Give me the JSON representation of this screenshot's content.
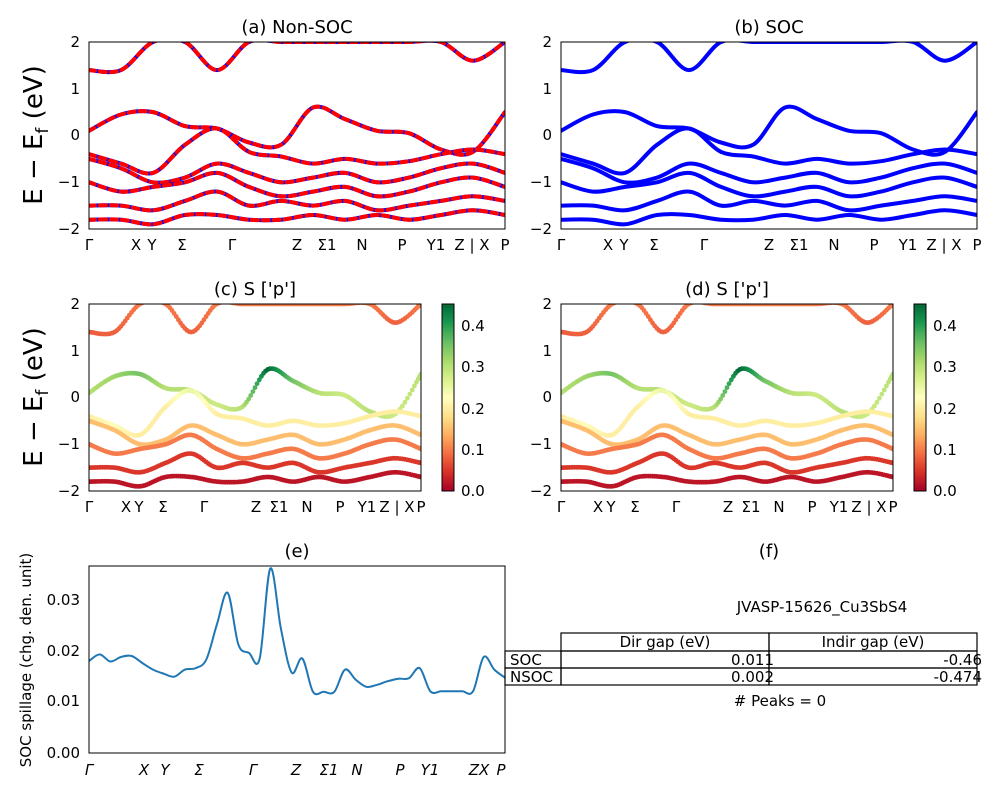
{
  "figure": {
    "band_ylabel": "E − E_f (eV)",
    "ylabel_main": "E − E",
    "ylabel_sub": "f",
    "ylabel_unit": " (eV)"
  },
  "chart_data": [
    {
      "id": "a",
      "type": "line",
      "title": "(a) Non-SOC",
      "ylim": [
        -2,
        2
      ],
      "yticks": [
        "2",
        "1",
        "0",
        "−1",
        "−2"
      ],
      "xticks": [
        "Γ",
        "X",
        "Y",
        "Σ",
        "Γ",
        "Z",
        "Σ1",
        "N",
        "P",
        "Y1",
        "Z | X",
        "P"
      ],
      "series": [
        {
          "color": "#0000ff",
          "line": "solid",
          "values": [
            0.1,
            0.45,
            0.5,
            0.2,
            0.15,
            -0.15,
            -0.2,
            0.6,
            0.35,
            0.1,
            0.05,
            -0.3,
            -0.35,
            0.5
          ]
        },
        {
          "color": "#ff0000",
          "line": "dashed",
          "values": [
            0.1,
            0.45,
            0.5,
            0.2,
            0.15,
            -0.15,
            -0.2,
            0.6,
            0.35,
            0.1,
            0.05,
            -0.3,
            -0.35,
            0.5
          ]
        },
        {
          "color": "#0000ff",
          "line": "solid",
          "values": [
            1.4,
            1.4,
            2.0,
            2.0,
            1.4,
            2.0,
            2.0,
            2.0,
            2.0,
            2.0,
            2.0,
            2.0,
            1.6,
            2.0
          ]
        },
        {
          "color": "#ff0000",
          "line": "dashed",
          "values": [
            1.4,
            1.4,
            2.0,
            2.0,
            1.4,
            2.0,
            2.0,
            2.0,
            2.0,
            2.0,
            2.0,
            2.0,
            1.6,
            2.0
          ]
        },
        {
          "color": "#0000ff",
          "line": "solid",
          "values": [
            -0.4,
            -0.6,
            -0.8,
            -0.2,
            0.15,
            -0.35,
            -0.45,
            -0.6,
            -0.5,
            -0.6,
            -0.55,
            -0.4,
            -0.3,
            -0.4
          ]
        },
        {
          "color": "#ff0000",
          "line": "dashed",
          "values": [
            -0.4,
            -0.6,
            -0.8,
            -0.2,
            0.15,
            -0.35,
            -0.45,
            -0.6,
            -0.5,
            -0.6,
            -0.55,
            -0.4,
            -0.3,
            -0.4
          ]
        },
        {
          "color": "#0000ff",
          "line": "solid",
          "values": [
            -0.5,
            -0.7,
            -1.0,
            -0.9,
            -0.6,
            -0.8,
            -1.0,
            -0.9,
            -0.8,
            -1.0,
            -0.9,
            -0.7,
            -0.6,
            -0.8
          ]
        },
        {
          "color": "#ff0000",
          "line": "dashed",
          "values": [
            -0.5,
            -0.7,
            -1.0,
            -0.9,
            -0.6,
            -0.8,
            -1.0,
            -0.9,
            -0.8,
            -1.0,
            -0.9,
            -0.7,
            -0.6,
            -0.8
          ]
        },
        {
          "color": "#0000ff",
          "line": "solid",
          "values": [
            -1.0,
            -1.2,
            -1.1,
            -1.0,
            -0.8,
            -1.1,
            -1.3,
            -1.2,
            -1.1,
            -1.3,
            -1.2,
            -1.0,
            -0.9,
            -1.1
          ]
        },
        {
          "color": "#ff0000",
          "line": "dashed",
          "values": [
            -1.0,
            -1.2,
            -1.1,
            -1.0,
            -0.8,
            -1.1,
            -1.3,
            -1.2,
            -1.1,
            -1.3,
            -1.2,
            -1.0,
            -0.9,
            -1.1
          ]
        },
        {
          "color": "#0000ff",
          "line": "solid",
          "values": [
            -1.5,
            -1.5,
            -1.6,
            -1.4,
            -1.2,
            -1.5,
            -1.4,
            -1.5,
            -1.4,
            -1.6,
            -1.5,
            -1.4,
            -1.3,
            -1.4
          ]
        },
        {
          "color": "#ff0000",
          "line": "dashed",
          "values": [
            -1.5,
            -1.5,
            -1.6,
            -1.4,
            -1.2,
            -1.5,
            -1.4,
            -1.5,
            -1.4,
            -1.6,
            -1.5,
            -1.4,
            -1.3,
            -1.4
          ]
        },
        {
          "color": "#0000ff",
          "line": "solid",
          "values": [
            -1.8,
            -1.8,
            -1.9,
            -1.7,
            -1.7,
            -1.8,
            -1.8,
            -1.7,
            -1.8,
            -1.7,
            -1.8,
            -1.7,
            -1.6,
            -1.7
          ]
        },
        {
          "color": "#ff0000",
          "line": "dashed",
          "values": [
            -1.8,
            -1.8,
            -1.9,
            -1.7,
            -1.7,
            -1.8,
            -1.8,
            -1.7,
            -1.8,
            -1.7,
            -1.8,
            -1.7,
            -1.6,
            -1.7
          ]
        }
      ]
    },
    {
      "id": "b",
      "type": "line",
      "title": "(b) SOC",
      "ylim": [
        -2,
        2
      ],
      "yticks": [
        "2",
        "1",
        "0",
        "−1",
        "−2"
      ],
      "xticks": [
        "Γ",
        "X",
        "Y",
        "Σ",
        "Γ",
        "Z",
        "Σ1",
        "N",
        "P",
        "Y1",
        "Z | X",
        "P"
      ],
      "series": [
        {
          "color": "#0000ff",
          "line": "solid",
          "values": [
            0.1,
            0.45,
            0.5,
            0.2,
            0.15,
            -0.15,
            -0.2,
            0.6,
            0.35,
            0.1,
            0.05,
            -0.3,
            -0.35,
            0.5
          ]
        },
        {
          "color": "#0000ff",
          "line": "solid",
          "values": [
            1.4,
            1.4,
            2.0,
            2.0,
            1.4,
            2.0,
            2.0,
            2.0,
            2.0,
            2.0,
            2.0,
            2.0,
            1.6,
            2.0
          ]
        },
        {
          "color": "#0000ff",
          "line": "solid",
          "values": [
            -0.4,
            -0.6,
            -0.8,
            -0.2,
            0.15,
            -0.35,
            -0.45,
            -0.6,
            -0.5,
            -0.6,
            -0.55,
            -0.4,
            -0.3,
            -0.4
          ]
        },
        {
          "color": "#0000ff",
          "line": "solid",
          "values": [
            -0.5,
            -0.7,
            -1.0,
            -0.9,
            -0.6,
            -0.8,
            -1.0,
            -0.9,
            -0.8,
            -1.0,
            -0.9,
            -0.7,
            -0.6,
            -0.8
          ]
        },
        {
          "color": "#0000ff",
          "line": "solid",
          "values": [
            -1.0,
            -1.2,
            -1.1,
            -1.0,
            -0.8,
            -1.1,
            -1.3,
            -1.2,
            -1.1,
            -1.3,
            -1.2,
            -1.0,
            -0.9,
            -1.1
          ]
        },
        {
          "color": "#0000ff",
          "line": "solid",
          "values": [
            -1.5,
            -1.5,
            -1.6,
            -1.4,
            -1.2,
            -1.5,
            -1.4,
            -1.5,
            -1.4,
            -1.6,
            -1.5,
            -1.4,
            -1.3,
            -1.4
          ]
        },
        {
          "color": "#0000ff",
          "line": "solid",
          "values": [
            -1.8,
            -1.8,
            -1.9,
            -1.7,
            -1.7,
            -1.8,
            -1.8,
            -1.7,
            -1.8,
            -1.7,
            -1.8,
            -1.7,
            -1.6,
            -1.7
          ]
        }
      ]
    },
    {
      "id": "c",
      "type": "scatter",
      "title": "(c)  S ['p']",
      "ylim": [
        -2,
        2
      ],
      "yticks": [
        "2",
        "1",
        "0",
        "−1",
        "−2"
      ],
      "xticks": [
        "Γ",
        "X",
        "Y",
        "Σ",
        "Γ",
        "Z",
        "Σ1",
        "N",
        "P",
        "Y1",
        "Z | X",
        "P"
      ],
      "colorbar": {
        "range": [
          0.0,
          0.45
        ],
        "ticks": [
          "0.4",
          "0.3",
          "0.2",
          "0.1",
          "0.0"
        ],
        "colormap": "RdYlGn"
      },
      "series": [
        {
          "weights": [
            0.3,
            0.32,
            0.35,
            0.3,
            0.3,
            0.28,
            0.3,
            0.45,
            0.35,
            0.3,
            0.28,
            0.3,
            0.28,
            0.3
          ],
          "values": [
            0.1,
            0.45,
            0.5,
            0.2,
            0.15,
            -0.15,
            -0.2,
            0.6,
            0.35,
            0.1,
            0.05,
            -0.3,
            -0.35,
            0.5
          ]
        },
        {
          "weights": [
            0.08,
            0.08,
            0.1,
            0.1,
            0.08,
            0.1,
            0.1,
            0.1,
            0.1,
            0.1,
            0.1,
            0.1,
            0.08,
            0.1
          ],
          "values": [
            1.4,
            1.4,
            2.0,
            2.0,
            1.4,
            2.0,
            2.0,
            2.0,
            2.0,
            2.0,
            2.0,
            2.0,
            1.6,
            2.0
          ]
        },
        {
          "weights": [
            0.2,
            0.22,
            0.2,
            0.2,
            0.25,
            0.2,
            0.2,
            0.2,
            0.2,
            0.2,
            0.2,
            0.2,
            0.2,
            0.2
          ],
          "values": [
            -0.4,
            -0.6,
            -0.8,
            -0.2,
            0.15,
            -0.35,
            -0.45,
            -0.6,
            -0.5,
            -0.6,
            -0.55,
            -0.4,
            -0.3,
            -0.4
          ]
        },
        {
          "weights": [
            0.15,
            0.15,
            0.15,
            0.15,
            0.15,
            0.15,
            0.15,
            0.15,
            0.15,
            0.15,
            0.15,
            0.15,
            0.15,
            0.15
          ],
          "values": [
            -0.5,
            -0.7,
            -1.0,
            -0.9,
            -0.6,
            -0.8,
            -1.0,
            -0.9,
            -0.8,
            -1.0,
            -0.9,
            -0.7,
            -0.6,
            -0.8
          ]
        },
        {
          "weights": [
            0.1,
            0.1,
            0.1,
            0.1,
            0.1,
            0.1,
            0.1,
            0.1,
            0.1,
            0.1,
            0.1,
            0.1,
            0.1,
            0.1
          ],
          "values": [
            -1.0,
            -1.2,
            -1.1,
            -1.0,
            -0.8,
            -1.1,
            -1.3,
            -1.2,
            -1.1,
            -1.3,
            -1.2,
            -1.0,
            -0.9,
            -1.1
          ]
        },
        {
          "weights": [
            0.05,
            0.05,
            0.05,
            0.05,
            0.05,
            0.05,
            0.05,
            0.05,
            0.05,
            0.05,
            0.05,
            0.05,
            0.05,
            0.05
          ],
          "values": [
            -1.5,
            -1.5,
            -1.6,
            -1.4,
            -1.2,
            -1.5,
            -1.4,
            -1.5,
            -1.4,
            -1.6,
            -1.5,
            -1.4,
            -1.3,
            -1.4
          ]
        },
        {
          "weights": [
            0.02,
            0.02,
            0.02,
            0.02,
            0.02,
            0.02,
            0.02,
            0.02,
            0.02,
            0.02,
            0.02,
            0.02,
            0.02,
            0.02
          ],
          "values": [
            -1.8,
            -1.8,
            -1.9,
            -1.7,
            -1.7,
            -1.8,
            -1.8,
            -1.7,
            -1.8,
            -1.7,
            -1.8,
            -1.7,
            -1.6,
            -1.7
          ]
        }
      ]
    },
    {
      "id": "d",
      "type": "scatter",
      "title": "(d) S ['p']",
      "ylim": [
        -2,
        2
      ],
      "yticks": [
        "2",
        "1",
        "0",
        "−1",
        "−2"
      ],
      "xticks": [
        "Γ",
        "X",
        "Y",
        "Σ",
        "Γ",
        "Z",
        "Σ1",
        "N",
        "P",
        "Y1",
        "Z | X",
        "P"
      ],
      "colorbar": {
        "range": [
          0.0,
          0.45
        ],
        "ticks": [
          "0.4",
          "0.3",
          "0.2",
          "0.1",
          "0.0"
        ],
        "colormap": "RdYlGn"
      },
      "series": [
        {
          "weights": [
            0.3,
            0.32,
            0.35,
            0.3,
            0.3,
            0.28,
            0.3,
            0.45,
            0.35,
            0.3,
            0.28,
            0.3,
            0.28,
            0.3
          ],
          "values": [
            0.1,
            0.45,
            0.5,
            0.2,
            0.15,
            -0.15,
            -0.2,
            0.6,
            0.35,
            0.1,
            0.05,
            -0.3,
            -0.35,
            0.5
          ]
        },
        {
          "weights": [
            0.08,
            0.08,
            0.1,
            0.1,
            0.08,
            0.1,
            0.1,
            0.1,
            0.1,
            0.1,
            0.1,
            0.1,
            0.08,
            0.1
          ],
          "values": [
            1.4,
            1.4,
            2.0,
            2.0,
            1.4,
            2.0,
            2.0,
            2.0,
            2.0,
            2.0,
            2.0,
            2.0,
            1.6,
            2.0
          ]
        },
        {
          "weights": [
            0.2,
            0.22,
            0.2,
            0.2,
            0.25,
            0.2,
            0.2,
            0.2,
            0.2,
            0.2,
            0.2,
            0.2,
            0.2,
            0.2
          ],
          "values": [
            -0.4,
            -0.6,
            -0.8,
            -0.2,
            0.15,
            -0.35,
            -0.45,
            -0.6,
            -0.5,
            -0.6,
            -0.55,
            -0.4,
            -0.3,
            -0.4
          ]
        },
        {
          "weights": [
            0.15,
            0.15,
            0.15,
            0.15,
            0.15,
            0.15,
            0.15,
            0.15,
            0.15,
            0.15,
            0.15,
            0.15,
            0.15,
            0.15
          ],
          "values": [
            -0.5,
            -0.7,
            -1.0,
            -0.9,
            -0.6,
            -0.8,
            -1.0,
            -0.9,
            -0.8,
            -1.0,
            -0.9,
            -0.7,
            -0.6,
            -0.8
          ]
        },
        {
          "weights": [
            0.1,
            0.1,
            0.1,
            0.1,
            0.1,
            0.1,
            0.1,
            0.1,
            0.1,
            0.1,
            0.1,
            0.1,
            0.1,
            0.1
          ],
          "values": [
            -1.0,
            -1.2,
            -1.1,
            -1.0,
            -0.8,
            -1.1,
            -1.3,
            -1.2,
            -1.1,
            -1.3,
            -1.2,
            -1.0,
            -0.9,
            -1.1
          ]
        },
        {
          "weights": [
            0.05,
            0.05,
            0.05,
            0.05,
            0.05,
            0.05,
            0.05,
            0.05,
            0.05,
            0.05,
            0.05,
            0.05,
            0.05,
            0.05
          ],
          "values": [
            -1.5,
            -1.5,
            -1.6,
            -1.4,
            -1.2,
            -1.5,
            -1.4,
            -1.5,
            -1.4,
            -1.6,
            -1.5,
            -1.4,
            -1.3,
            -1.4
          ]
        },
        {
          "weights": [
            0.02,
            0.02,
            0.02,
            0.02,
            0.02,
            0.02,
            0.02,
            0.02,
            0.02,
            0.02,
            0.02,
            0.02,
            0.02,
            0.02
          ],
          "values": [
            -1.8,
            -1.8,
            -1.9,
            -1.7,
            -1.7,
            -1.8,
            -1.8,
            -1.7,
            -1.8,
            -1.7,
            -1.8,
            -1.7,
            -1.6,
            -1.7
          ]
        }
      ]
    },
    {
      "id": "e",
      "type": "line",
      "title": "(e)",
      "ylabel": "SOC spillage (chg. den. unit)",
      "ylim": [
        0.0,
        0.037
      ],
      "yticks": [
        "0.03",
        "0.02",
        "0.01",
        "0.00"
      ],
      "xticks": [
        "Γ",
        "X",
        "Y",
        "Σ",
        "Γ",
        "Z",
        "Σ1",
        "N",
        "P",
        "Y1",
        "ZX",
        "P"
      ],
      "series": [
        {
          "color": "#1f77b4",
          "values": [
            0.0182,
            0.0195,
            0.0181,
            0.019,
            0.0192,
            0.0178,
            0.0165,
            0.0157,
            0.0151,
            0.0165,
            0.0168,
            0.0185,
            0.0255,
            0.0317,
            0.0215,
            0.0198,
            0.0187,
            0.0365,
            0.0245,
            0.0159,
            0.0187,
            0.0121,
            0.0121,
            0.0121,
            0.0165,
            0.0145,
            0.0131,
            0.0135,
            0.0142,
            0.0147,
            0.0148,
            0.0168,
            0.0122,
            0.0122,
            0.0122,
            0.0122,
            0.0122,
            0.019,
            0.0165,
            0.0149
          ]
        }
      ]
    },
    {
      "id": "f",
      "type": "table",
      "title": "(f)",
      "subtitle": "JVASP-15626_Cu3SbS4",
      "columns": [
        "Dir gap (eV)",
        "Indir gap (eV)"
      ],
      "rows": [
        {
          "label": "SOC",
          "values": [
            "0.011",
            "-0.46"
          ]
        },
        {
          "label": "NSOC",
          "values": [
            "0.002",
            "-0.474"
          ]
        }
      ],
      "note": "# Peaks = 0"
    }
  ]
}
